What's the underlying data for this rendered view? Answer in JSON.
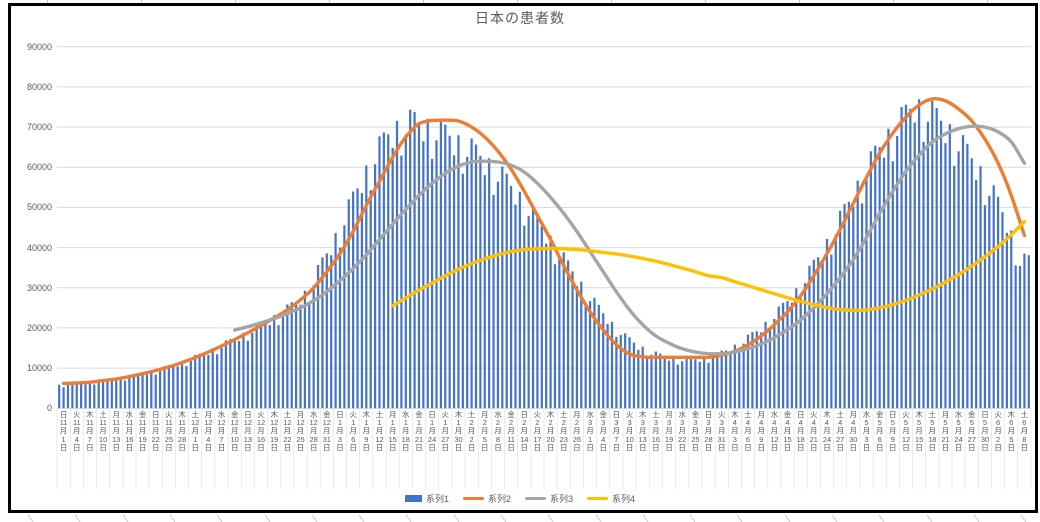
{
  "chart_data": {
    "type": "combo",
    "title": "日本の患者数",
    "legend_position": "bottom",
    "grid": "horizontal",
    "ylim": [
      0,
      90000
    ],
    "y_tick_interval": 10000,
    "y_tick_labels": [
      "90000",
      "80000",
      "70000",
      "60000",
      "50000",
      "40000",
      "30000",
      "20000",
      "10000",
      "0"
    ],
    "x_label_format": "weekday|month|day",
    "month_char": "月",
    "day_char": "日",
    "bars_per_label": 3,
    "bar_weekly_texture": [
      0.98,
      0.85,
      0.92,
      1.0,
      0.99,
      0.96,
      0.9
    ],
    "x_labels": [
      "日|11|1",
      "火|11|4",
      "木|11|7",
      "土|11|10",
      "月|11|13",
      "水|11|16",
      "金|11|19",
      "日|11|22",
      "火|11|25",
      "木|11|28",
      "土|12|1",
      "月|12|4",
      "水|12|7",
      "金|12|10",
      "日|12|13",
      "火|12|16",
      "木|12|19",
      "土|12|22",
      "月|12|25",
      "水|12|28",
      "金|12|31",
      "日|1|3",
      "火|1|6",
      "木|1|9",
      "土|1|12",
      "月|1|15",
      "水|1|18",
      "金|1|21",
      "日|1|24",
      "火|1|27",
      "木|1|30",
      "土|2|2",
      "月|2|5",
      "水|2|8",
      "金|2|11",
      "日|2|14",
      "火|2|17",
      "木|2|20",
      "土|2|23",
      "月|2|26",
      "水|3|1",
      "金|3|4",
      "日|3|7",
      "火|3|10",
      "木|3|13",
      "土|3|16",
      "月|3|19",
      "水|3|22",
      "金|3|25",
      "日|3|28",
      "火|3|31",
      "木|4|3",
      "土|4|6",
      "月|4|9",
      "水|4|12",
      "金|4|15",
      "日|4|18",
      "火|4|21",
      "木|4|24",
      "土|4|27",
      "月|4|30",
      "水|5|3",
      "金|5|6",
      "日|5|9",
      "火|5|12",
      "木|5|15",
      "土|5|18",
      "月|5|21",
      "水|5|24",
      "金|5|27",
      "日|5|30",
      "火|6|2",
      "木|6|5",
      "土|6|8"
    ],
    "series": [
      {
        "name": "系列1",
        "type": "bar",
        "color": "#4472C4",
        "values": [
          6000,
          6500,
          6700,
          7100,
          7500,
          8100,
          8800,
          9600,
          10500,
          11600,
          12800,
          14200,
          15800,
          17400,
          19200,
          21000,
          23000,
          25000,
          27500,
          31000,
          38000,
          44500,
          52000,
          59500,
          66000,
          71000,
          74000,
          74500,
          73500,
          72000,
          70000,
          68000,
          65500,
          62500,
          59000,
          55000,
          50500,
          45500,
          40500,
          35500,
          30500,
          26000,
          22000,
          18700,
          16200,
          14500,
          13400,
          12800,
          12600,
          13000,
          14000,
          15500,
          17500,
          20000,
          23000,
          26500,
          30500,
          35500,
          41000,
          47000,
          53500,
          60000,
          66000,
          71000,
          75000,
          79000,
          77500,
          74500,
          71000,
          66500,
          61500,
          55500,
          48500,
          38500
        ]
      },
      {
        "name": "系列2",
        "type": "line",
        "color": "#ED7D31",
        "values": [
          6200,
          6300,
          6500,
          6900,
          7300,
          7900,
          8600,
          9400,
          10300,
          11400,
          12600,
          14000,
          15500,
          17100,
          18800,
          20600,
          22500,
          24500,
          27000,
          30000,
          34000,
          38500,
          44000,
          50500,
          56500,
          62500,
          67500,
          70800,
          71600,
          71700,
          71500,
          70000,
          67500,
          64000,
          59500,
          54000,
          48000,
          42000,
          35500,
          29500,
          24000,
          19500,
          15800,
          13500,
          12800,
          12700,
          12700,
          12700,
          12700,
          12700,
          13200,
          14200,
          15800,
          18000,
          20800,
          24000,
          28000,
          33000,
          38500,
          44500,
          51000,
          57500,
          63500,
          68500,
          72500,
          75500,
          77000,
          76500,
          74500,
          71500,
          67000,
          61000,
          53000,
          43000
        ]
      },
      {
        "name": "系列3",
        "type": "line",
        "color": "#A5A5A5",
        "values": [
          null,
          null,
          null,
          null,
          null,
          null,
          null,
          null,
          null,
          null,
          null,
          null,
          null,
          19500,
          20300,
          21300,
          22300,
          23600,
          25000,
          26800,
          29000,
          31800,
          34800,
          38200,
          42000,
          45800,
          49500,
          53000,
          56000,
          58500,
          60300,
          61300,
          61500,
          61300,
          60500,
          58800,
          56000,
          52500,
          48500,
          44000,
          39000,
          34000,
          29000,
          24500,
          20800,
          18000,
          16200,
          14800,
          14000,
          13600,
          13600,
          14000,
          14800,
          16000,
          17600,
          19600,
          22000,
          25000,
          28500,
          32500,
          37000,
          42500,
          48500,
          54000,
          59000,
          63000,
          66300,
          68300,
          69600,
          70200,
          70000,
          68800,
          66300,
          61000
        ]
      },
      {
        "name": "系列4",
        "type": "line",
        "color": "#FFC000",
        "values": [
          null,
          null,
          null,
          null,
          null,
          null,
          null,
          null,
          null,
          null,
          null,
          null,
          null,
          null,
          null,
          null,
          null,
          null,
          null,
          null,
          null,
          null,
          null,
          null,
          null,
          25500,
          27500,
          29400,
          31200,
          33000,
          34600,
          36000,
          37200,
          38200,
          39000,
          39500,
          39700,
          39800,
          39700,
          39500,
          39200,
          38800,
          38400,
          37900,
          37300,
          36600,
          35800,
          34900,
          34000,
          33000,
          32500,
          31500,
          30500,
          29500,
          28500,
          27500,
          26600,
          25800,
          25100,
          24600,
          24400,
          24500,
          25000,
          25800,
          26900,
          28200,
          29700,
          31400,
          33300,
          35400,
          37700,
          40300,
          43200,
          46500
        ]
      }
    ]
  }
}
